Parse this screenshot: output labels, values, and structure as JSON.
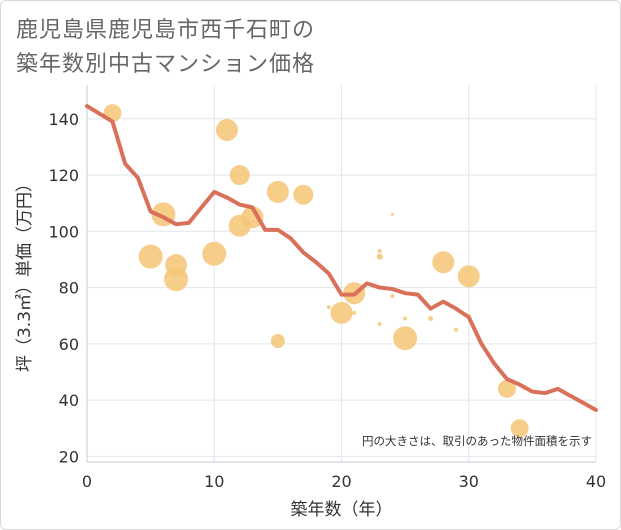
{
  "title_lines": [
    "鹿児島県鹿児島市西千石町の",
    "築年数別中古マンション価格"
  ],
  "chart_data": {
    "type": "scatter",
    "title": "鹿児島県鹿児島市西千石町の築年数別中古マンション価格",
    "xlabel": "築年数（年）",
    "ylabel": "坪（3.3㎡）単価（万円）",
    "xlim": [
      0,
      40
    ],
    "ylim": [
      18,
      152
    ],
    "xticks": [
      0,
      10,
      20,
      30,
      40
    ],
    "yticks": [
      20,
      40,
      60,
      80,
      100,
      120,
      140
    ],
    "grid": true,
    "note": "円の大きさは、取引のあった物件面積を示す",
    "colors": {
      "bubble": "#f5c679",
      "line": "#d9705a",
      "grid": "#e2e6ea",
      "axis": "#c4cdd4"
    },
    "scatter": [
      {
        "x": 2,
        "y": 142,
        "s": 9
      },
      {
        "x": 5,
        "y": 91,
        "s": 12
      },
      {
        "x": 6,
        "y": 106,
        "s": 12
      },
      {
        "x": 7,
        "y": 88,
        "s": 11
      },
      {
        "x": 7,
        "y": 83,
        "s": 12
      },
      {
        "x": 10,
        "y": 92,
        "s": 12
      },
      {
        "x": 11,
        "y": 136,
        "s": 11
      },
      {
        "x": 12,
        "y": 120,
        "s": 10
      },
      {
        "x": 12,
        "y": 102,
        "s": 11
      },
      {
        "x": 13,
        "y": 105,
        "s": 11
      },
      {
        "x": 15,
        "y": 114,
        "s": 11
      },
      {
        "x": 15,
        "y": 61,
        "s": 7
      },
      {
        "x": 17,
        "y": 113,
        "s": 10
      },
      {
        "x": 19,
        "y": 73,
        "s": 2
      },
      {
        "x": 20,
        "y": 71,
        "s": 11
      },
      {
        "x": 21,
        "y": 78,
        "s": 11
      },
      {
        "x": 21,
        "y": 71,
        "s": 2
      },
      {
        "x": 23,
        "y": 93,
        "s": 2
      },
      {
        "x": 23,
        "y": 91,
        "s": 3
      },
      {
        "x": 23,
        "y": 67,
        "s": 2
      },
      {
        "x": 24,
        "y": 106,
        "s": 1.5
      },
      {
        "x": 24,
        "y": 77,
        "s": 2
      },
      {
        "x": 25,
        "y": 69,
        "s": 2
      },
      {
        "x": 25,
        "y": 62,
        "s": 12
      },
      {
        "x": 27,
        "y": 69,
        "s": 2.5
      },
      {
        "x": 28,
        "y": 89,
        "s": 11
      },
      {
        "x": 29,
        "y": 65,
        "s": 2
      },
      {
        "x": 30,
        "y": 84,
        "s": 11
      },
      {
        "x": 30,
        "y": 70,
        "s": 2
      },
      {
        "x": 33,
        "y": 44,
        "s": 9
      },
      {
        "x": 34,
        "y": 30,
        "s": 9
      }
    ],
    "trend": {
      "x": [
        0,
        2,
        3,
        4,
        5,
        6,
        7,
        8,
        10,
        11,
        12,
        13,
        14,
        15,
        16,
        17,
        18,
        19,
        20,
        21,
        22,
        23,
        24,
        25,
        26,
        27,
        28,
        29,
        30,
        31,
        32,
        33,
        34,
        35,
        36,
        37,
        38,
        39,
        40
      ],
      "y": [
        144.5,
        139,
        124,
        119,
        107,
        105,
        102.5,
        103,
        114,
        112,
        109.5,
        108.5,
        100.5,
        100.5,
        97.5,
        92.5,
        89,
        85,
        77.5,
        77.5,
        81.5,
        80,
        79.5,
        78,
        77.5,
        72.5,
        75,
        72.5,
        69.5,
        60,
        53,
        47.5,
        45.5,
        43,
        42.5,
        44,
        41.5,
        39,
        36.5
      ]
    }
  }
}
